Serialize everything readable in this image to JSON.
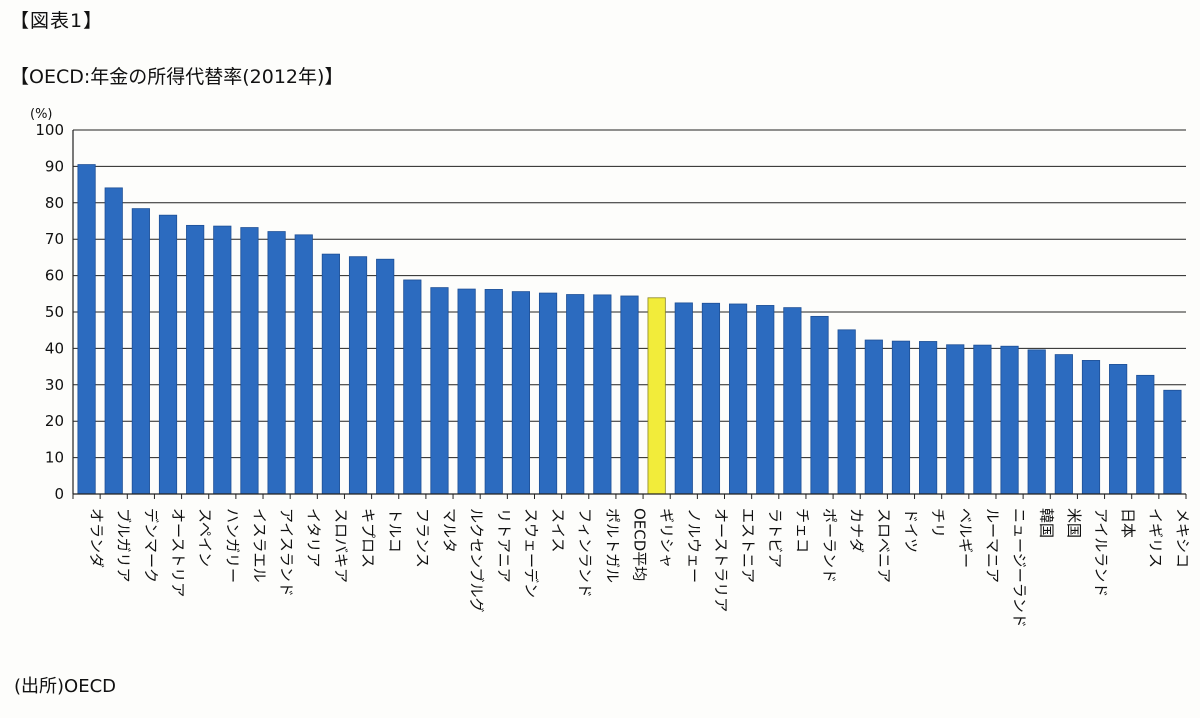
{
  "figure_label": "【図表1】",
  "source": "(出所)OECD",
  "colors": {
    "bar": "#2c6bbf",
    "bar_stroke": "#1d4f96",
    "highlight": "#f2ec3a",
    "highlight_stroke": "#8a8520",
    "grid": "#222222"
  },
  "chart_data": {
    "type": "bar",
    "title": "【OECD:年金の所得代替率(2012年)】",
    "ylabel": "(%)",
    "xlabel": "",
    "ylim": [
      0,
      100
    ],
    "yticks": [
      0,
      10,
      20,
      30,
      40,
      50,
      60,
      70,
      80,
      90,
      100
    ],
    "grid": true,
    "highlight_category": "ギリシャ",
    "categories": [
      "オランダ",
      "ブルガリア",
      "デンマーク",
      "オーストリア",
      "スペイン",
      "ハンガリー",
      "イスラエル",
      "アイスランド",
      "イタリア",
      "スロバキア",
      "キプロス",
      "トルコ",
      "フランス",
      "マルタ",
      "ルクセンブルグ",
      "リトアニア",
      "スウェーデン",
      "スイス",
      "フィンランド",
      "ポルトガル",
      "OECD平均",
      "ギリシャ",
      "ノルウェー",
      "オーストラリア",
      "エストニア",
      "ラトビア",
      "チェコ",
      "ポーランド",
      "カナダ",
      "スロベニア",
      "ドイツ",
      "チリ",
      "ベルギー",
      "ルーマニア",
      "ニュージーランド",
      "韓国",
      "米国",
      "アイルランド",
      "日本",
      "イギリス",
      "メキシコ"
    ],
    "values": [
      90.5,
      84.1,
      78.4,
      76.6,
      73.8,
      73.6,
      73.2,
      72.1,
      71.2,
      65.9,
      65.2,
      64.5,
      58.8,
      56.7,
      56.3,
      56.2,
      55.6,
      55.2,
      54.8,
      54.7,
      54.4,
      53.9,
      52.5,
      52.4,
      52.2,
      51.8,
      51.2,
      48.8,
      45.1,
      42.3,
      42.0,
      41.9,
      41.0,
      40.9,
      40.6,
      39.6,
      38.3,
      36.7,
      35.6,
      32.6,
      28.5
    ]
  }
}
